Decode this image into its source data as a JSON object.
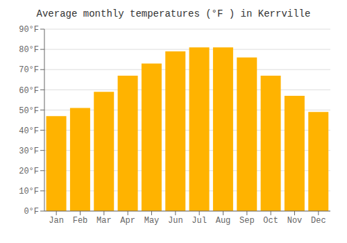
{
  "chart_data": {
    "type": "bar",
    "title": "Average monthly temperatures (°F ) in Kerrville",
    "categories": [
      "Jan",
      "Feb",
      "Mar",
      "Apr",
      "May",
      "Jun",
      "Jul",
      "Aug",
      "Sep",
      "Oct",
      "Nov",
      "Dec"
    ],
    "values": [
      47,
      51,
      59,
      67,
      73,
      79,
      81,
      81,
      76,
      67,
      57,
      49
    ],
    "color": "#FFB300",
    "ylim": [
      0,
      90
    ],
    "yticks": [
      {
        "value": 0,
        "label": "0°F"
      },
      {
        "value": 10,
        "label": "10°F"
      },
      {
        "value": 20,
        "label": "20°F"
      },
      {
        "value": 30,
        "label": "30°F"
      },
      {
        "value": 40,
        "label": "40°F"
      },
      {
        "value": 50,
        "label": "50°F"
      },
      {
        "value": 60,
        "label": "60°F"
      },
      {
        "value": 70,
        "label": "70°F"
      },
      {
        "value": 80,
        "label": "80°F"
      },
      {
        "value": 90,
        "label": "90°F"
      }
    ],
    "grid": true
  }
}
